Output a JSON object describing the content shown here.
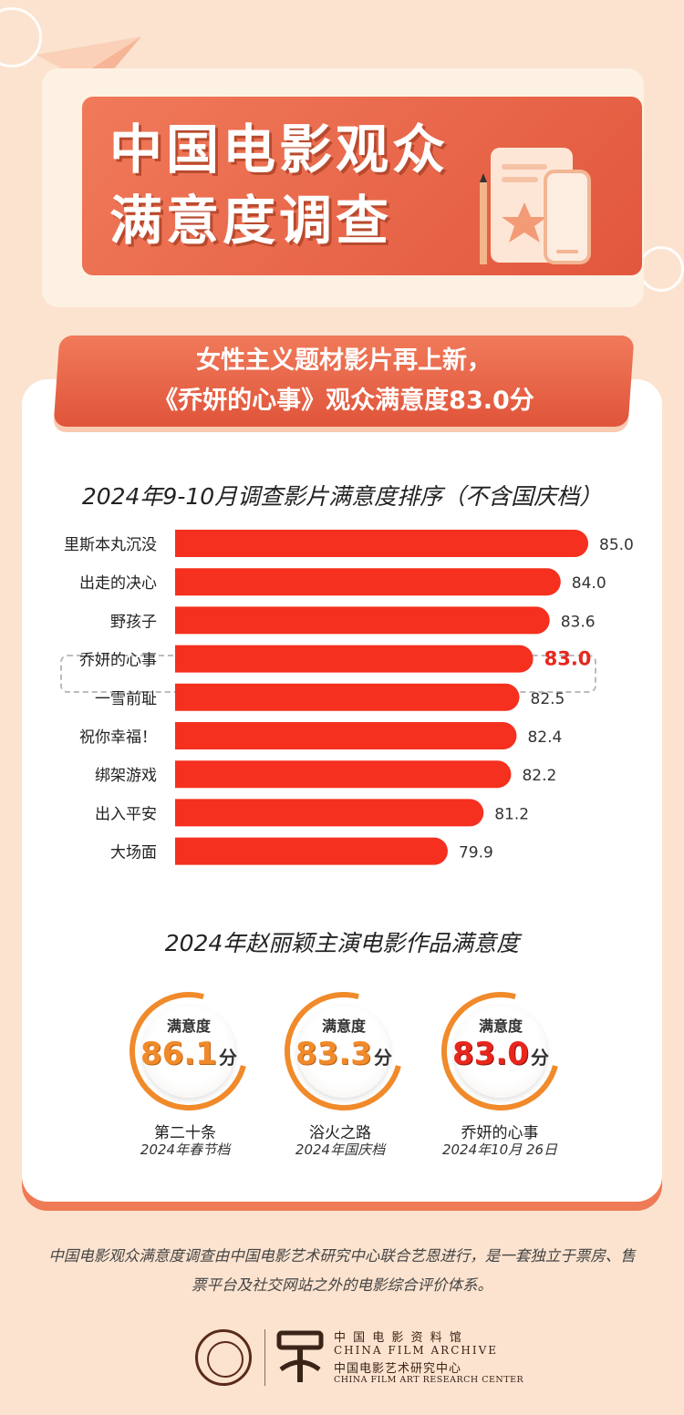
{
  "header": {
    "title_line1": "中国电影观众",
    "title_line2": "满意度调查"
  },
  "subtitle": {
    "line1": "女性主义题材影片再上新，",
    "line2": "《乔妍的心事》观众满意度83.0分"
  },
  "colors": {
    "bar": "#f5301f",
    "highlight_value": "#e8261c",
    "accent": "#e2573d",
    "badge_ring": "#f08a2a"
  },
  "chart_data": {
    "type": "bar",
    "orientation": "horizontal",
    "title": "2024年9-10月调查影片满意度排序（不含国庆档）",
    "categories": [
      "里斯本丸沉没",
      "出走的决心",
      "野孩子",
      "乔妍的心事",
      "一雪前耻",
      "祝你幸福！",
      "绑架游戏",
      "出入平安",
      "大场面"
    ],
    "values": [
      85.0,
      84.0,
      83.6,
      83.0,
      82.5,
      82.4,
      82.2,
      81.2,
      79.9
    ],
    "value_labels": [
      "85.0",
      "84.0",
      "83.6",
      "83.0",
      "82.5",
      "82.4",
      "82.2",
      "81.2",
      "79.9"
    ],
    "highlight_index": 3,
    "grid": false
  },
  "zhao_section": {
    "title": "2024年赵丽颖主演电影作品满意度",
    "items": [
      {
        "label": "满意度",
        "score": "86.1",
        "unit": "分",
        "film": "第二十条",
        "release": "2024年春节档"
      },
      {
        "label": "满意度",
        "score": "83.3",
        "unit": "分",
        "film": "浴火之路",
        "release": "2024年国庆档"
      },
      {
        "label": "满意度",
        "score": "83.0",
        "unit": "分",
        "film": "乔妍的心事",
        "release": "2024年10月 26日"
      }
    ]
  },
  "footer": {
    "note": "中国电影观众满意度调查由中国电影艺术研究中心联合艺恩进行，是一套独立于票房、售票平台及社交网站之外的电影综合评价体系。",
    "org_cn_1": "中 国 电 影 资 料 馆",
    "org_en_1": "CHINA FILM ARCHIVE",
    "org_cn_2": "中国电影艺术研究中心",
    "org_en_2": "CHINA FILM ART RESEARCH CENTER"
  }
}
